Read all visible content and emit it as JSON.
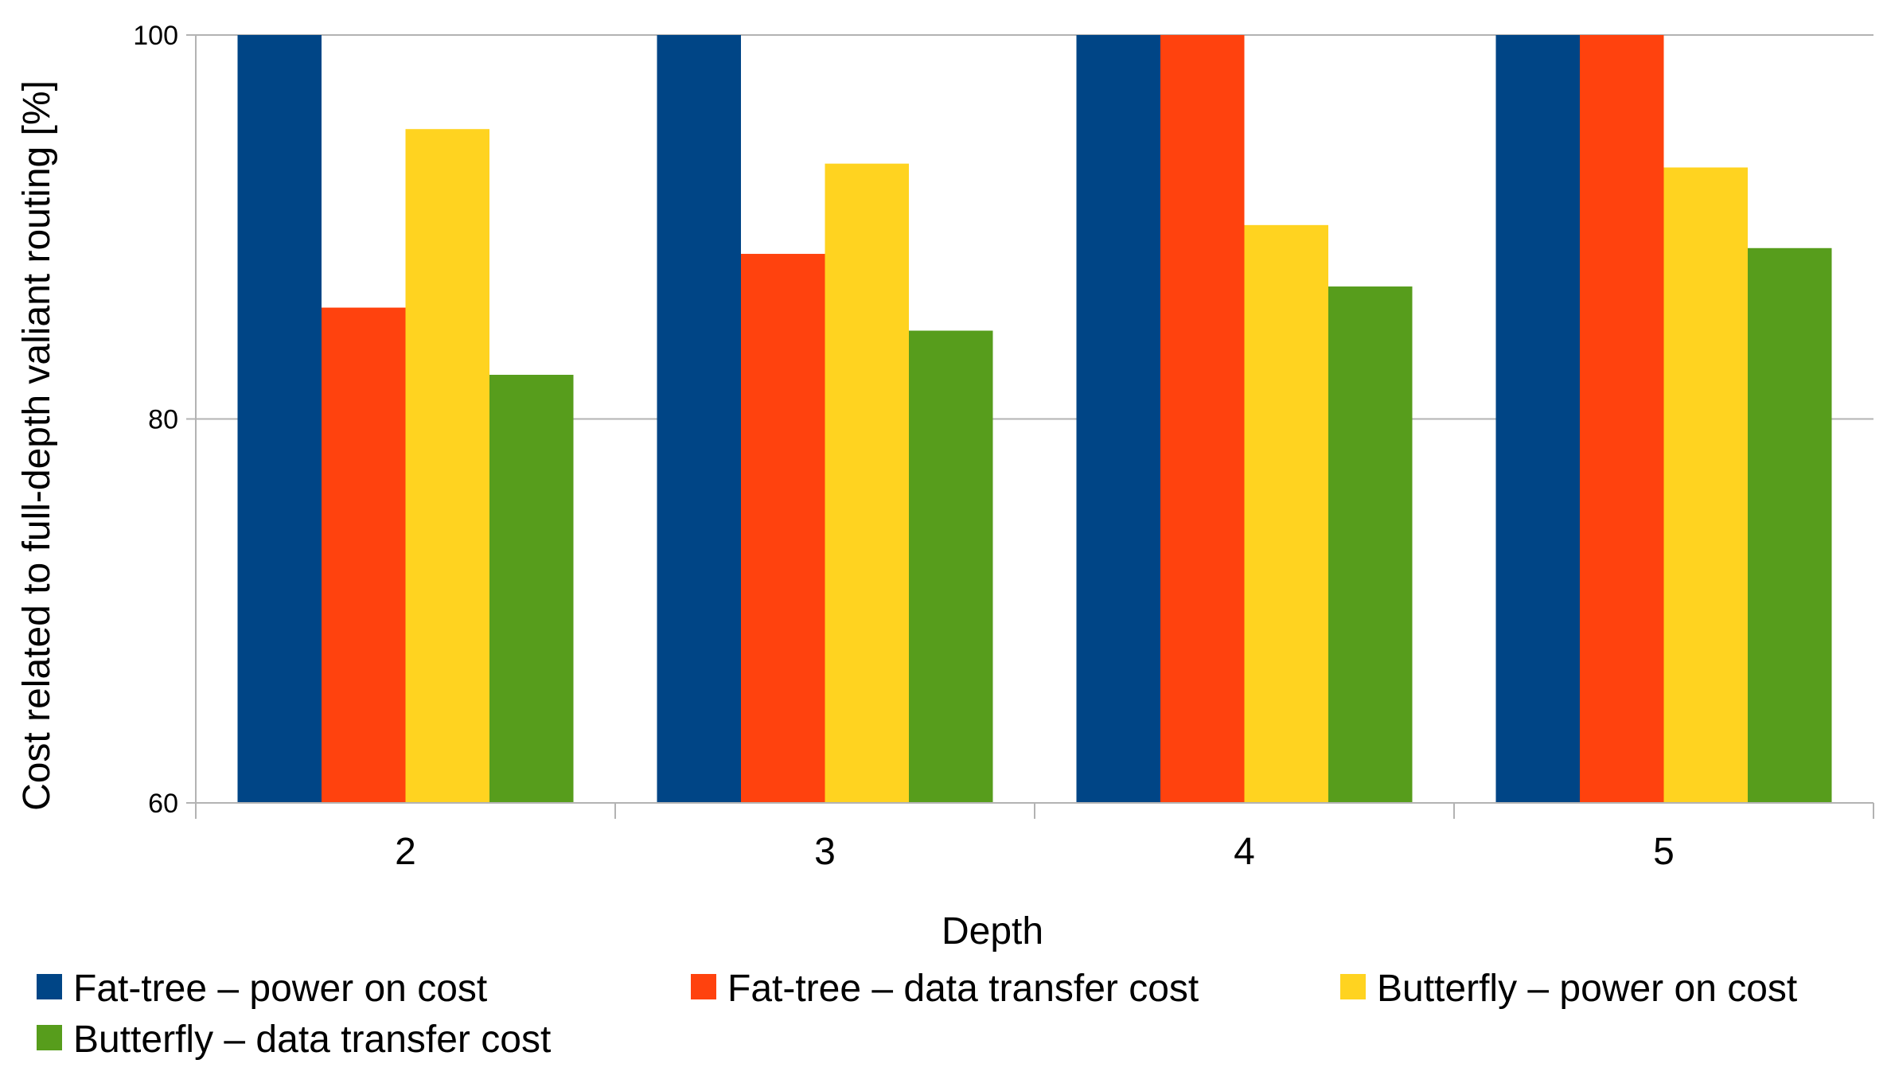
{
  "chart_data": {
    "type": "bar",
    "title": "",
    "xlabel": "Depth",
    "ylabel": "Cost related to full-depth valiant routing [%]",
    "categories": [
      "2",
      "3",
      "4",
      "5"
    ],
    "ylim": [
      60,
      100
    ],
    "yticks": [
      60,
      80,
      100
    ],
    "grid": true,
    "legend_position": "bottom",
    "series": [
      {
        "name": "Fat-tree – power on cost",
        "color": "#004586",
        "values": [
          100,
          100,
          100,
          100
        ]
      },
      {
        "name": "Fat-tree – data transfer cost",
        "color": "#ff420e",
        "values": [
          85.8,
          88.6,
          100,
          100
        ]
      },
      {
        "name": "Butterfly – power on cost",
        "color": "#ffd320",
        "values": [
          95.1,
          93.3,
          90.1,
          93.1
        ]
      },
      {
        "name": "Butterfly – data transfer cost",
        "color": "#579d1c",
        "values": [
          82.3,
          84.6,
          86.9,
          88.9
        ]
      }
    ]
  }
}
